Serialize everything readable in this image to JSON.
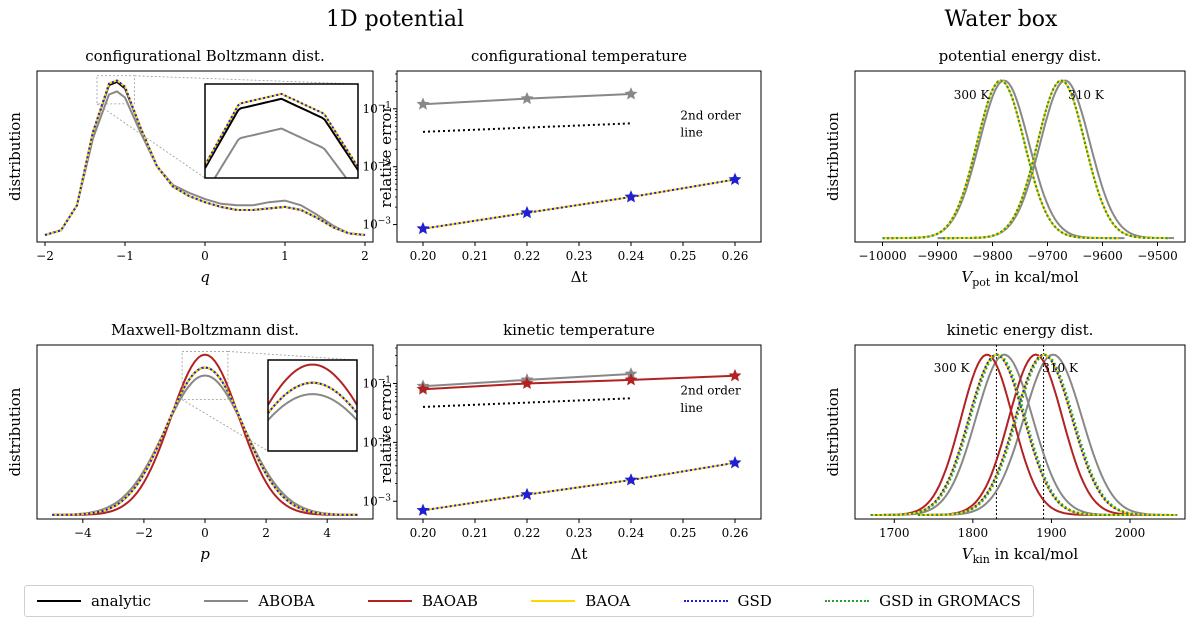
{
  "figure": {
    "group_titles": [
      "1D potential",
      "Water box"
    ],
    "legend": [
      {
        "label": "analytic",
        "color": "#000000",
        "dash": "solid"
      },
      {
        "label": "ABOBA",
        "color": "#888888",
        "dash": "solid"
      },
      {
        "label": "BAOAB",
        "color": "#b22222",
        "dash": "solid"
      },
      {
        "label": "BAOA",
        "color": "#ffd700",
        "dash": "solid"
      },
      {
        "label": "GSD",
        "color": "#1f1fd8",
        "dash": "dotted"
      },
      {
        "label": "GSD in GROMACS",
        "color": "#2ca02c",
        "dash": "dotted"
      }
    ]
  },
  "chart_data": [
    {
      "id": "config_boltzmann",
      "type": "line",
      "title": "configurational Boltzmann dist.",
      "xlabel": "q",
      "ylabel": "distribution",
      "xlim": [
        -2.1,
        2.1
      ],
      "xticks": [
        "−2",
        "−1",
        "0",
        "1",
        "2"
      ],
      "has_inset": true,
      "series": [
        {
          "name": "analytic",
          "x": [
            -2.0,
            -1.8,
            -1.6,
            -1.4,
            -1.2,
            -1.1,
            -1.0,
            -0.8,
            -0.6,
            -0.4,
            -0.2,
            0.0,
            0.2,
            0.4,
            0.6,
            0.8,
            1.0,
            1.2,
            1.4,
            1.6,
            1.8,
            2.0
          ],
          "y": [
            0.02,
            0.05,
            0.21,
            0.68,
            0.98,
            1.0,
            0.96,
            0.7,
            0.46,
            0.33,
            0.27,
            0.23,
            0.2,
            0.18,
            0.18,
            0.19,
            0.2,
            0.18,
            0.13,
            0.07,
            0.03,
            0.02
          ]
        },
        {
          "name": "ABOBA",
          "x": [
            -2.0,
            -1.8,
            -1.6,
            -1.4,
            -1.2,
            -1.1,
            -1.0,
            -0.8,
            -0.6,
            -0.4,
            -0.2,
            0.0,
            0.2,
            0.4,
            0.6,
            0.8,
            1.0,
            1.2,
            1.4,
            1.6,
            1.8,
            2.0
          ],
          "y": [
            0.02,
            0.05,
            0.21,
            0.64,
            0.92,
            0.94,
            0.9,
            0.67,
            0.46,
            0.34,
            0.29,
            0.25,
            0.22,
            0.21,
            0.21,
            0.23,
            0.24,
            0.21,
            0.15,
            0.08,
            0.03,
            0.02
          ]
        },
        {
          "name": "BAOA",
          "x": [
            -2.0,
            -1.8,
            -1.6,
            -1.4,
            -1.2,
            -1.1,
            -1.0,
            -0.8,
            -0.6,
            -0.4,
            -0.2,
            0.0,
            0.2,
            0.4,
            0.6,
            0.8,
            1.0,
            1.2,
            1.4,
            1.6,
            1.8,
            2.0
          ],
          "y": [
            0.02,
            0.05,
            0.21,
            0.68,
            0.99,
            1.01,
            0.97,
            0.7,
            0.46,
            0.33,
            0.27,
            0.23,
            0.2,
            0.18,
            0.18,
            0.19,
            0.2,
            0.18,
            0.13,
            0.07,
            0.03,
            0.02
          ]
        },
        {
          "name": "GSD",
          "x": [
            -2.0,
            -1.8,
            -1.6,
            -1.4,
            -1.2,
            -1.1,
            -1.0,
            -0.8,
            -0.6,
            -0.4,
            -0.2,
            0.0,
            0.2,
            0.4,
            0.6,
            0.8,
            1.0,
            1.2,
            1.4,
            1.6,
            1.8,
            2.0
          ],
          "y": [
            0.02,
            0.05,
            0.21,
            0.68,
            0.99,
            1.01,
            0.97,
            0.7,
            0.46,
            0.33,
            0.27,
            0.23,
            0.2,
            0.18,
            0.18,
            0.19,
            0.2,
            0.18,
            0.13,
            0.07,
            0.03,
            0.02
          ]
        }
      ]
    },
    {
      "id": "config_temperature",
      "type": "line",
      "title": "configurational temperature",
      "xlabel": "Δt",
      "ylabel": "relative error",
      "yscale": "log",
      "xlim": [
        0.195,
        0.265
      ],
      "ylim": [
        0.0005,
        0.45
      ],
      "xticks": [
        "0.20",
        "0.21",
        "0.22",
        "0.23",
        "0.24",
        "0.25",
        "0.26"
      ],
      "yticks": [
        "10⁻³",
        "10⁻²",
        "10⁻¹"
      ],
      "annotation": [
        "2nd order",
        "line"
      ],
      "guide_line": {
        "x": [
          0.2,
          0.24
        ],
        "y": [
          0.04,
          0.056
        ]
      },
      "series": [
        {
          "name": "ABOBA",
          "x": [
            0.2,
            0.22,
            0.24
          ],
          "y": [
            0.12,
            0.15,
            0.18
          ]
        },
        {
          "name": "BAOA",
          "x": [
            0.2,
            0.22,
            0.24,
            0.26
          ],
          "y": [
            0.00085,
            0.0016,
            0.003,
            0.006
          ]
        },
        {
          "name": "GSD",
          "x": [
            0.2,
            0.22,
            0.24,
            0.26
          ],
          "y": [
            0.00085,
            0.0016,
            0.003,
            0.006
          ]
        }
      ]
    },
    {
      "id": "potential_energy",
      "type": "line",
      "title": "potential energy dist.",
      "xlabel": "V_pot in kcal/mol",
      "ylabel": "distribution",
      "xlim": [
        -10050,
        -9450
      ],
      "xticks": [
        "−10000",
        "−9900",
        "−9800",
        "−9700",
        "−9600",
        "−9500"
      ],
      "annotations": [
        "300 K",
        "310 K"
      ],
      "series": [
        {
          "name": "ABOBA 300 K",
          "gauss": {
            "mu": -9779,
            "sigma": 45,
            "amp": 1.0,
            "from": -10000,
            "to": -9560
          }
        },
        {
          "name": "ABOBA 310 K",
          "gauss": {
            "mu": -9668,
            "sigma": 45,
            "amp": 1.0,
            "from": -9900,
            "to": -9470
          }
        },
        {
          "name": "BAOA 300 K",
          "gauss": {
            "mu": -9785,
            "sigma": 43,
            "amp": 1.0,
            "from": -10000,
            "to": -9570
          }
        },
        {
          "name": "BAOA 310 K",
          "gauss": {
            "mu": -9675,
            "sigma": 43,
            "amp": 1.0,
            "from": -9890,
            "to": -9480
          }
        },
        {
          "name": "GSD 300 K",
          "gauss": {
            "mu": -9785,
            "sigma": 43,
            "amp": 1.0,
            "from": -10000,
            "to": -9570
          }
        },
        {
          "name": "GSD 310 K",
          "gauss": {
            "mu": -9675,
            "sigma": 43,
            "amp": 1.0,
            "from": -9890,
            "to": -9480
          }
        },
        {
          "name": "GSD in GROMACS 300 K",
          "gauss": {
            "mu": -9785,
            "sigma": 43,
            "amp": 1.0,
            "from": -10000,
            "to": -9570
          }
        },
        {
          "name": "GSD in GROMACS 310 K",
          "gauss": {
            "mu": -9675,
            "sigma": 43,
            "amp": 1.0,
            "from": -9890,
            "to": -9480
          }
        }
      ]
    },
    {
      "id": "maxwell_boltzmann",
      "type": "line",
      "title": "Maxwell-Boltzmann dist.",
      "xlabel": "p",
      "ylabel": "distribution",
      "xlim": [
        -5.5,
        5.5
      ],
      "xticks": [
        "−4",
        "−2",
        "0",
        "2",
        "4"
      ],
      "has_inset": true,
      "series": [
        {
          "name": "analytic",
          "gauss": {
            "mu": 0,
            "sigma": 1.25,
            "amp": 0.92,
            "from": -5,
            "to": 5
          }
        },
        {
          "name": "ABOBA",
          "gauss": {
            "mu": 0,
            "sigma": 1.32,
            "amp": 0.87,
            "from": -5,
            "to": 5
          }
        },
        {
          "name": "BAOAB",
          "gauss": {
            "mu": 0,
            "sigma": 1.12,
            "amp": 1.0,
            "from": -5,
            "to": 5
          }
        },
        {
          "name": "BAOA",
          "gauss": {
            "mu": 0,
            "sigma": 1.25,
            "amp": 0.92,
            "from": -5,
            "to": 5
          }
        },
        {
          "name": "GSD",
          "gauss": {
            "mu": 0,
            "sigma": 1.25,
            "amp": 0.92,
            "from": -5,
            "to": 5
          }
        }
      ]
    },
    {
      "id": "kinetic_temperature",
      "type": "line",
      "title": "kinetic temperature",
      "xlabel": "Δt",
      "ylabel": "relative error",
      "yscale": "log",
      "xlim": [
        0.195,
        0.265
      ],
      "ylim": [
        0.0005,
        0.45
      ],
      "xticks": [
        "0.20",
        "0.21",
        "0.22",
        "0.23",
        "0.24",
        "0.25",
        "0.26"
      ],
      "yticks": [
        "10⁻³",
        "10⁻²",
        "10⁻¹"
      ],
      "annotation": [
        "2nd order",
        "line"
      ],
      "guide_line": {
        "x": [
          0.2,
          0.24
        ],
        "y": [
          0.04,
          0.056
        ]
      },
      "series": [
        {
          "name": "ABOBA",
          "x": [
            0.2,
            0.22,
            0.24
          ],
          "y": [
            0.09,
            0.115,
            0.145
          ]
        },
        {
          "name": "BAOAB",
          "x": [
            0.2,
            0.22,
            0.24,
            0.26
          ],
          "y": [
            0.08,
            0.1,
            0.115,
            0.135
          ]
        },
        {
          "name": "BAOA",
          "x": [
            0.2,
            0.22,
            0.24,
            0.26
          ],
          "y": [
            0.0007,
            0.0013,
            0.0023,
            0.0045
          ]
        },
        {
          "name": "GSD",
          "x": [
            0.2,
            0.22,
            0.24,
            0.26
          ],
          "y": [
            0.0007,
            0.0013,
            0.0023,
            0.0045
          ]
        }
      ]
    },
    {
      "id": "kinetic_energy",
      "type": "line",
      "title": "kinetic energy dist.",
      "xlabel": "V_kin in kcal/mol",
      "ylabel": "distribution",
      "xlim": [
        1650,
        2070
      ],
      "xticks": [
        "1700",
        "1800",
        "1900",
        "2000"
      ],
      "annotations": [
        "300 K",
        "310 K"
      ],
      "vlines": [
        1830,
        1890
      ],
      "series": [
        {
          "name": "ABOBA 300 K",
          "gauss": {
            "mu": 1840,
            "sigma": 36,
            "amp": 1.0,
            "from": 1690,
            "to": 2000
          }
        },
        {
          "name": "ABOBA 310 K",
          "gauss": {
            "mu": 1902,
            "sigma": 37,
            "amp": 1.0,
            "from": 1750,
            "to": 2060
          }
        },
        {
          "name": "BAOAB 300 K",
          "gauss": {
            "mu": 1818,
            "sigma": 33,
            "amp": 1.0,
            "from": 1680,
            "to": 1980
          }
        },
        {
          "name": "BAOAB 310 K",
          "gauss": {
            "mu": 1880,
            "sigma": 34,
            "amp": 1.0,
            "from": 1740,
            "to": 2040
          }
        },
        {
          "name": "BAOA 300 K",
          "gauss": {
            "mu": 1830,
            "sigma": 35,
            "amp": 1.0,
            "from": 1670,
            "to": 2000
          }
        },
        {
          "name": "BAOA 310 K",
          "gauss": {
            "mu": 1890,
            "sigma": 36,
            "amp": 1.0,
            "from": 1730,
            "to": 2060
          }
        },
        {
          "name": "GSD 300 K",
          "gauss": {
            "mu": 1830,
            "sigma": 35,
            "amp": 1.0,
            "from": 1670,
            "to": 2000
          }
        },
        {
          "name": "GSD 310 K",
          "gauss": {
            "mu": 1890,
            "sigma": 36,
            "amp": 1.0,
            "from": 1730,
            "to": 2060
          }
        },
        {
          "name": "GSD in GROMACS 300 K",
          "gauss": {
            "mu": 1832,
            "sigma": 35,
            "amp": 1.0,
            "from": 1670,
            "to": 2000
          }
        },
        {
          "name": "GSD in GROMACS 310 K",
          "gauss": {
            "mu": 1892,
            "sigma": 36,
            "amp": 1.0,
            "from": 1730,
            "to": 2060
          }
        }
      ]
    }
  ]
}
